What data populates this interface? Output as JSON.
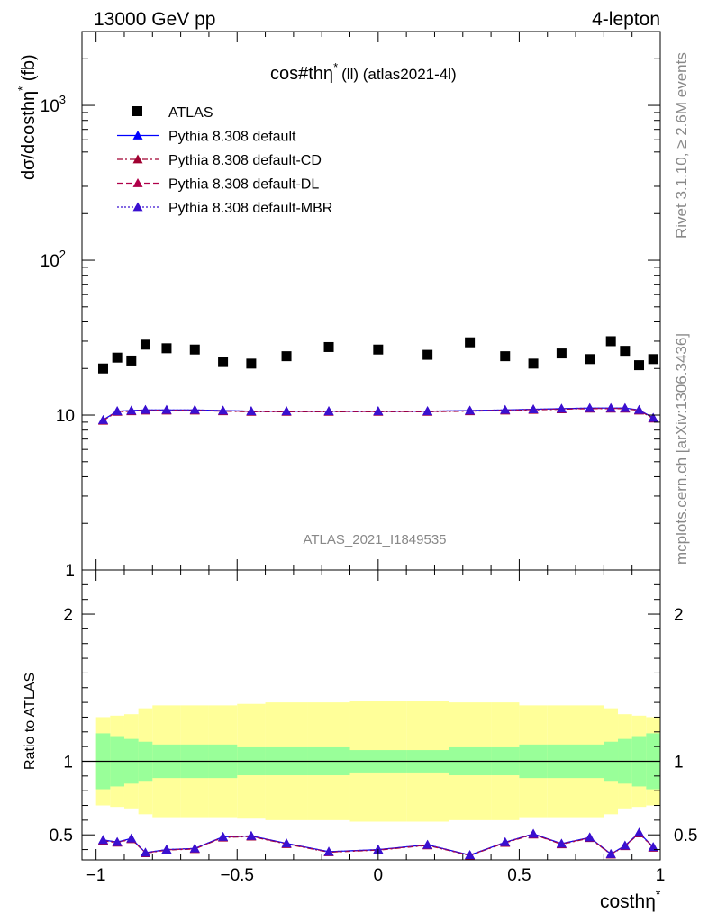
{
  "header": {
    "energy_label": "13000 GeV pp",
    "channel_label": "4-lepton"
  },
  "main_panel": {
    "title": "cos#thη",
    "title_sup": "*",
    "title_suffix": "(ll) (atlas2021-4l)",
    "ylabel": "dσ/dcosthη",
    "ylabel_sup": "*",
    "ylabel_suffix": " (fb)",
    "watermark": "ATLAS_2021_I1849535"
  },
  "side_labels": {
    "rivet": "Rivet 3.1.10, ≥ 2.6M events",
    "mcplots": "mcplots.cern.ch [arXiv:1306.3436]"
  },
  "ratio_panel": {
    "ylabel": "Ratio to ATLAS"
  },
  "x_axis": {
    "label": "costhη",
    "label_sup": "*"
  },
  "legend": [
    {
      "label": "ATLAS",
      "color": "#000000",
      "style": "marker-square"
    },
    {
      "label": "Pythia 8.308 default",
      "color": "#0000ff",
      "style": "solid"
    },
    {
      "label": "Pythia 8.308 default-CD",
      "color": "#a00030",
      "style": "dashdot"
    },
    {
      "label": "Pythia 8.308 default-DL",
      "color": "#b0004a",
      "style": "dashed"
    },
    {
      "label": "Pythia 8.308 default-MBR",
      "color": "#3a10d0",
      "style": "dotted"
    }
  ],
  "chart_data": {
    "type": "scatter",
    "xlim": [
      -1.05,
      1.0
    ],
    "ylim": [
      1,
      3000
    ],
    "y_scale": "log",
    "ratio_ylim": [
      0.33,
      2.3
    ],
    "x_ticks": [
      {
        "v": -1,
        "label": "−1"
      },
      {
        "v": -0.5,
        "label": "−0.5"
      },
      {
        "v": 0,
        "label": "0"
      },
      {
        "v": 0.5,
        "label": "0.5"
      },
      {
        "v": 1,
        "label": "1"
      }
    ],
    "y_ticks": [
      {
        "v": 1,
        "label": "1"
      },
      {
        "v": 10,
        "label": "10"
      },
      {
        "v": 100,
        "label": "10",
        "sup": "2"
      },
      {
        "v": 1000,
        "label": "10",
        "sup": "3"
      }
    ],
    "ratio_ticks": [
      {
        "v": 0.5,
        "label": "0.5"
      },
      {
        "v": 1,
        "label": "1"
      },
      {
        "v": 2,
        "label": "2"
      }
    ],
    "bin_edges": [
      -1.0,
      -0.95,
      -0.9,
      -0.85,
      -0.8,
      -0.7,
      -0.6,
      -0.5,
      -0.4,
      -0.25,
      -0.1,
      0.1,
      0.25,
      0.4,
      0.5,
      0.6,
      0.7,
      0.8,
      0.85,
      0.9,
      0.95,
      1.0
    ],
    "x": [
      -0.975,
      -0.925,
      -0.875,
      -0.825,
      -0.75,
      -0.65,
      -0.55,
      -0.45,
      -0.325,
      -0.175,
      0.0,
      0.175,
      0.325,
      0.45,
      0.55,
      0.65,
      0.75,
      0.825,
      0.875,
      0.925,
      0.975
    ],
    "data": {
      "name": "ATLAS",
      "values": [
        20,
        23.5,
        22.5,
        28.5,
        27,
        26.5,
        22,
        21.5,
        24,
        27.5,
        26.5,
        24.5,
        29.5,
        24,
        21.5,
        25,
        23,
        30,
        26,
        21,
        23
      ]
    },
    "band_inner": [
      0.8,
      0.82,
      0.84,
      0.86,
      0.88,
      0.88,
      0.88,
      0.9,
      0.9,
      0.9,
      0.92,
      0.92,
      0.9,
      0.9,
      0.88,
      0.88,
      0.88,
      0.86,
      0.84,
      0.82,
      0.8
    ],
    "band_outer": [
      0.6,
      0.62,
      0.64,
      0.72,
      0.76,
      0.76,
      0.76,
      0.78,
      0.8,
      0.8,
      0.82,
      0.82,
      0.8,
      0.8,
      0.76,
      0.76,
      0.76,
      0.72,
      0.64,
      0.62,
      0.6
    ],
    "series": [
      {
        "name": "Pythia 8.308 default",
        "values": [
          9.3,
          10.6,
          10.7,
          10.8,
          10.8,
          10.8,
          10.7,
          10.6,
          10.6,
          10.6,
          10.6,
          10.6,
          10.7,
          10.8,
          10.9,
          11.0,
          11.1,
          11.1,
          11.1,
          10.8,
          9.6
        ]
      },
      {
        "name": "Pythia 8.308 default-CD",
        "values": [
          9.2,
          10.5,
          10.6,
          10.7,
          10.7,
          10.7,
          10.6,
          10.5,
          10.5,
          10.5,
          10.5,
          10.5,
          10.6,
          10.7,
          10.8,
          10.9,
          11.0,
          11.0,
          11.0,
          10.7,
          9.5
        ]
      },
      {
        "name": "Pythia 8.308 default-DL",
        "values": [
          9.25,
          10.55,
          10.65,
          10.75,
          10.75,
          10.75,
          10.65,
          10.55,
          10.55,
          10.55,
          10.55,
          10.55,
          10.65,
          10.75,
          10.85,
          10.95,
          11.05,
          11.05,
          11.05,
          10.75,
          9.55
        ]
      },
      {
        "name": "Pythia 8.308 default-MBR",
        "values": [
          9.3,
          10.6,
          10.7,
          10.8,
          10.8,
          10.8,
          10.7,
          10.6,
          10.6,
          10.6,
          10.6,
          10.6,
          10.7,
          10.8,
          10.9,
          11.0,
          11.1,
          11.1,
          11.1,
          10.8,
          9.6
        ]
      }
    ]
  }
}
